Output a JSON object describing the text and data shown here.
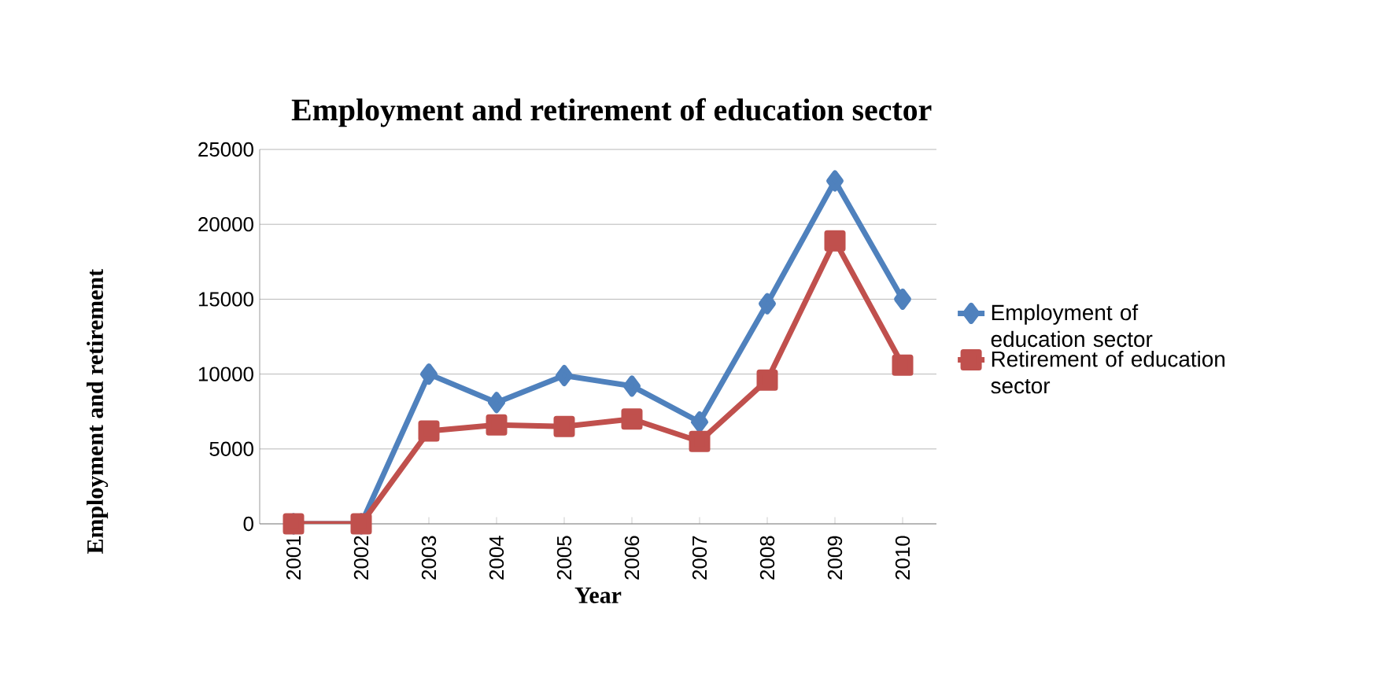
{
  "chart_data": {
    "type": "line",
    "title": "Employment and retirement of education sector",
    "xlabel": "Year",
    "ylabel": "Employment and retirement",
    "categories": [
      "2001",
      "2002",
      "2003",
      "2004",
      "2005",
      "2006",
      "2007",
      "2008",
      "2009",
      "2010"
    ],
    "series": [
      {
        "name": "Employment of education sector",
        "color": "#4f81bd",
        "marker": "diamond",
        "values": [
          0,
          0,
          10000,
          8100,
          9900,
          9200,
          6800,
          14700,
          22900,
          15000
        ]
      },
      {
        "name": "Retirement of education sector",
        "color": "#c0504d",
        "marker": "square",
        "values": [
          0,
          0,
          6200,
          6600,
          6500,
          7000,
          5500,
          9600,
          18900,
          10600
        ]
      }
    ],
    "ylim": [
      0,
      25000
    ],
    "yticks": [
      0,
      5000,
      10000,
      15000,
      20000,
      25000
    ],
    "grid": "y",
    "legend": "right"
  }
}
